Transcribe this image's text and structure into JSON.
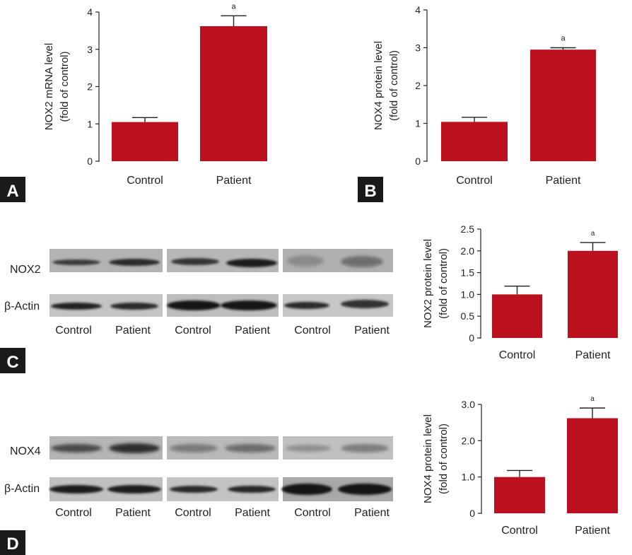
{
  "panels": {
    "a": "A",
    "b": "B",
    "c": "C",
    "d": "D"
  },
  "blot_labels": {
    "nox2": "NOX2",
    "nox4": "NOX4",
    "actin": "β-Actin",
    "lanes": [
      "Control",
      "Patient",
      "Control",
      "Patient",
      "Control",
      "Patient"
    ]
  },
  "colors": {
    "bar": "#bb111f",
    "panel_badge": "#1a1a1a",
    "blot_bg": "#b9b9b9",
    "band": "#252525"
  },
  "chart_data": [
    {
      "type": "bar",
      "panel": "A",
      "categories": [
        "Control",
        "Patient"
      ],
      "values": [
        1.05,
        3.62
      ],
      "errors": [
        0.12,
        0.28
      ],
      "annotations": [
        "",
        "a"
      ],
      "ylabel": "NOX2 mRNA level",
      "ylabel2": "(fold of control)",
      "ylim": [
        0,
        4
      ],
      "yticks": [
        0,
        1,
        2,
        3,
        4
      ],
      "ytick_labels": [
        "0",
        "1",
        "2",
        "3",
        "4"
      ]
    },
    {
      "type": "bar",
      "panel": "B",
      "categories": [
        "Control",
        "Patient"
      ],
      "values": [
        1.04,
        2.95
      ],
      "errors": [
        0.12,
        0.05
      ],
      "annotations": [
        "",
        "a"
      ],
      "ylabel": "NOX4 protein level",
      "ylabel2": "(fold of control)",
      "ylim": [
        0,
        4
      ],
      "yticks": [
        0,
        1,
        2,
        3,
        4
      ],
      "ytick_labels": [
        "0",
        "1",
        "2",
        "3",
        "4"
      ]
    },
    {
      "type": "bar",
      "panel": "C",
      "categories": [
        "Control",
        "Patient"
      ],
      "values": [
        1.0,
        2.0
      ],
      "errors": [
        0.19,
        0.19
      ],
      "annotations": [
        "",
        "a"
      ],
      "ylabel": "NOX2 protein level",
      "ylabel2": "(fold of control)",
      "ylim": [
        0,
        2.5
      ],
      "yticks": [
        0,
        0.5,
        1.0,
        1.5,
        2.0,
        2.5
      ],
      "ytick_labels": [
        "0",
        "0.5",
        "1.0",
        "1.5",
        "2.0",
        "2.5"
      ]
    },
    {
      "type": "bar",
      "panel": "D",
      "categories": [
        "Control",
        "Patient"
      ],
      "values": [
        1.0,
        2.62
      ],
      "errors": [
        0.18,
        0.28
      ],
      "annotations": [
        "",
        "a"
      ],
      "ylabel": "NOX4 protein level",
      "ylabel2": "(fold of control)",
      "ylim": [
        0,
        3.0
      ],
      "yticks": [
        0,
        1.0,
        2.0,
        3.0
      ],
      "ytick_labels": [
        "0",
        "1.0",
        "2.0",
        "3.0"
      ]
    }
  ]
}
